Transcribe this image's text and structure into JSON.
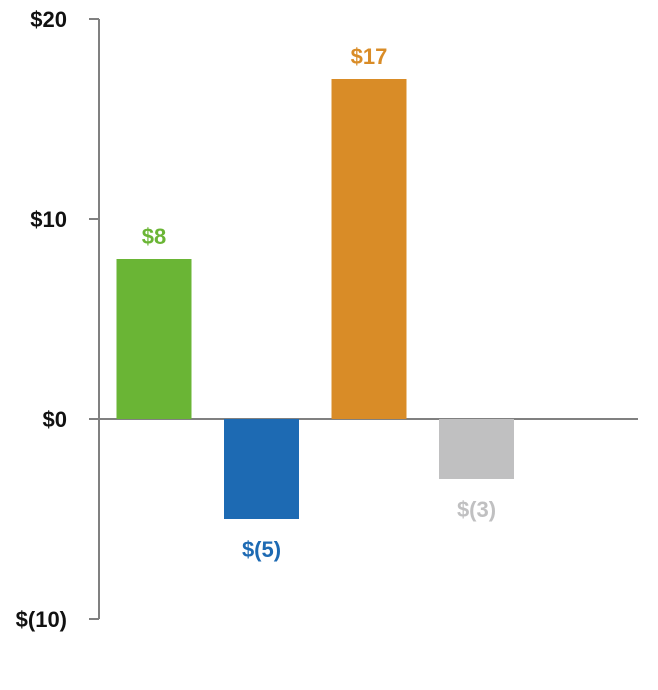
{
  "chart_data": {
    "type": "bar",
    "categories": [
      "",
      "",
      "",
      ""
    ],
    "values": [
      8,
      -5,
      17,
      -3
    ],
    "data_labels": [
      "$8",
      "$(5)",
      "$17",
      "$(3)"
    ],
    "colors": [
      "#6ab535",
      "#1d6ab3",
      "#d98c27",
      "#c0c0c1"
    ],
    "y_ticks": [
      20,
      10,
      0,
      -10
    ],
    "y_tick_labels": [
      "$20",
      "$10",
      "$0",
      "$(10)"
    ],
    "ylim": [
      -10,
      20
    ],
    "title": "",
    "xlabel": "",
    "ylabel": "",
    "grid": false,
    "legend": "none"
  }
}
